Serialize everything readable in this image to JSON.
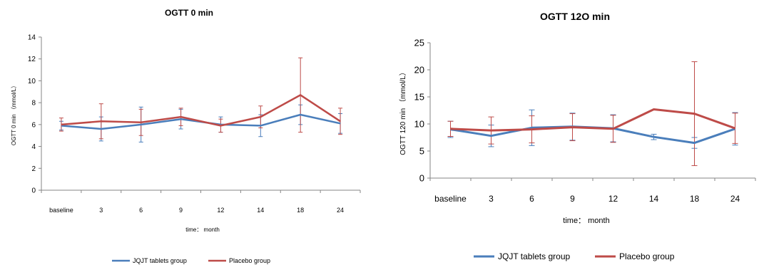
{
  "colors": {
    "jqjt": "#4a7ebb",
    "placebo": "#be4b48",
    "axis": "#868686"
  },
  "chart_data": [
    {
      "type": "line",
      "title": "OGTT 0 min",
      "xlabel": "time： month",
      "ylabel": "OGTT  0 min  （mmol/L）",
      "categories": [
        "baseline",
        "3",
        "6",
        "9",
        "12",
        "14",
        "18",
        "24"
      ],
      "ylim": [
        0,
        14
      ],
      "yticks": [
        0,
        2,
        4,
        6,
        8,
        10,
        12,
        14
      ],
      "grid": false,
      "legend": "bottom",
      "series": [
        {
          "name": "JQJT tablets group",
          "values": [
            5.9,
            5.6,
            6.0,
            6.5,
            6.0,
            5.9,
            6.9,
            6.1
          ],
          "error": [
            0.4,
            1.1,
            1.6,
            0.9,
            0.7,
            1.0,
            0.9,
            0.9
          ]
        },
        {
          "name": "Placebo group",
          "values": [
            6.0,
            6.3,
            6.2,
            6.7,
            5.9,
            6.7,
            8.7,
            6.3
          ],
          "error": [
            0.6,
            1.6,
            1.2,
            0.8,
            0.6,
            1.0,
            3.4,
            1.2
          ]
        }
      ]
    },
    {
      "type": "line",
      "title": "OGTT 12O min",
      "xlabel": "time： month",
      "ylabel": "OGTT  120 min  （mmol/L）",
      "categories": [
        "baseline",
        "3",
        "6",
        "9",
        "12",
        "14",
        "18",
        "24"
      ],
      "ylim": [
        0,
        25
      ],
      "yticks": [
        0,
        5,
        10,
        15,
        20,
        25
      ],
      "grid": false,
      "legend": "bottom",
      "series": [
        {
          "name": "JQJT tablets group",
          "values": [
            9.0,
            7.8,
            9.3,
            9.5,
            9.2,
            7.6,
            6.5,
            9.1
          ],
          "error": [
            1.5,
            2.0,
            3.3,
            2.5,
            2.5,
            0.5,
            1.0,
            3.0
          ]
        },
        {
          "name": "Placebo group",
          "values": [
            9.1,
            8.8,
            9.0,
            9.4,
            9.1,
            12.7,
            11.9,
            9.2
          ],
          "error": [
            1.4,
            2.5,
            2.5,
            2.5,
            2.5,
            0.0,
            9.6,
            2.8
          ]
        }
      ]
    }
  ]
}
